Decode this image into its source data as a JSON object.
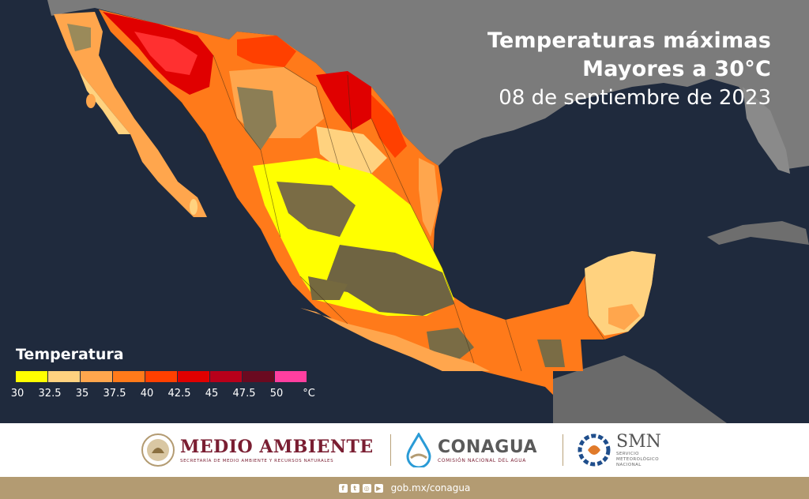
{
  "map": {
    "title_line1": "Temperaturas máximas",
    "title_line2": "Mayores a 30°C",
    "date": "08 de septiembre de 2023"
  },
  "legend": {
    "title": "Temperatura",
    "colors": [
      "#ffff00",
      "#ffd27f",
      "#ffa64d",
      "#ff7a1a",
      "#ff4000",
      "#e00000",
      "#b8001a",
      "#6a0a20",
      "#ff3fa0"
    ],
    "ticks": [
      "30",
      "32.5",
      "35",
      "37.5",
      "40",
      "42.5",
      "45",
      "47.5",
      "50",
      "°C"
    ]
  },
  "footer": {
    "medio_ambiente": {
      "name": "MEDIO AMBIENTE",
      "subtitle": "SECRETARÍA DE MEDIO AMBIENTE Y RECURSOS NATURALES"
    },
    "conagua": {
      "name": "CONAGUA",
      "subtitle": "COMISIÓN NACIONAL DEL AGUA"
    },
    "smn": {
      "name": "SMN",
      "subtitle_1": "SERVICIO",
      "subtitle_2": "METEOROLÓGICO",
      "subtitle_3": "NACIONAL"
    }
  },
  "bottom_bar": {
    "social_icons": [
      "facebook-icon",
      "twitter-icon",
      "instagram-icon",
      "youtube-icon"
    ],
    "url": "gob.mx/conagua"
  }
}
